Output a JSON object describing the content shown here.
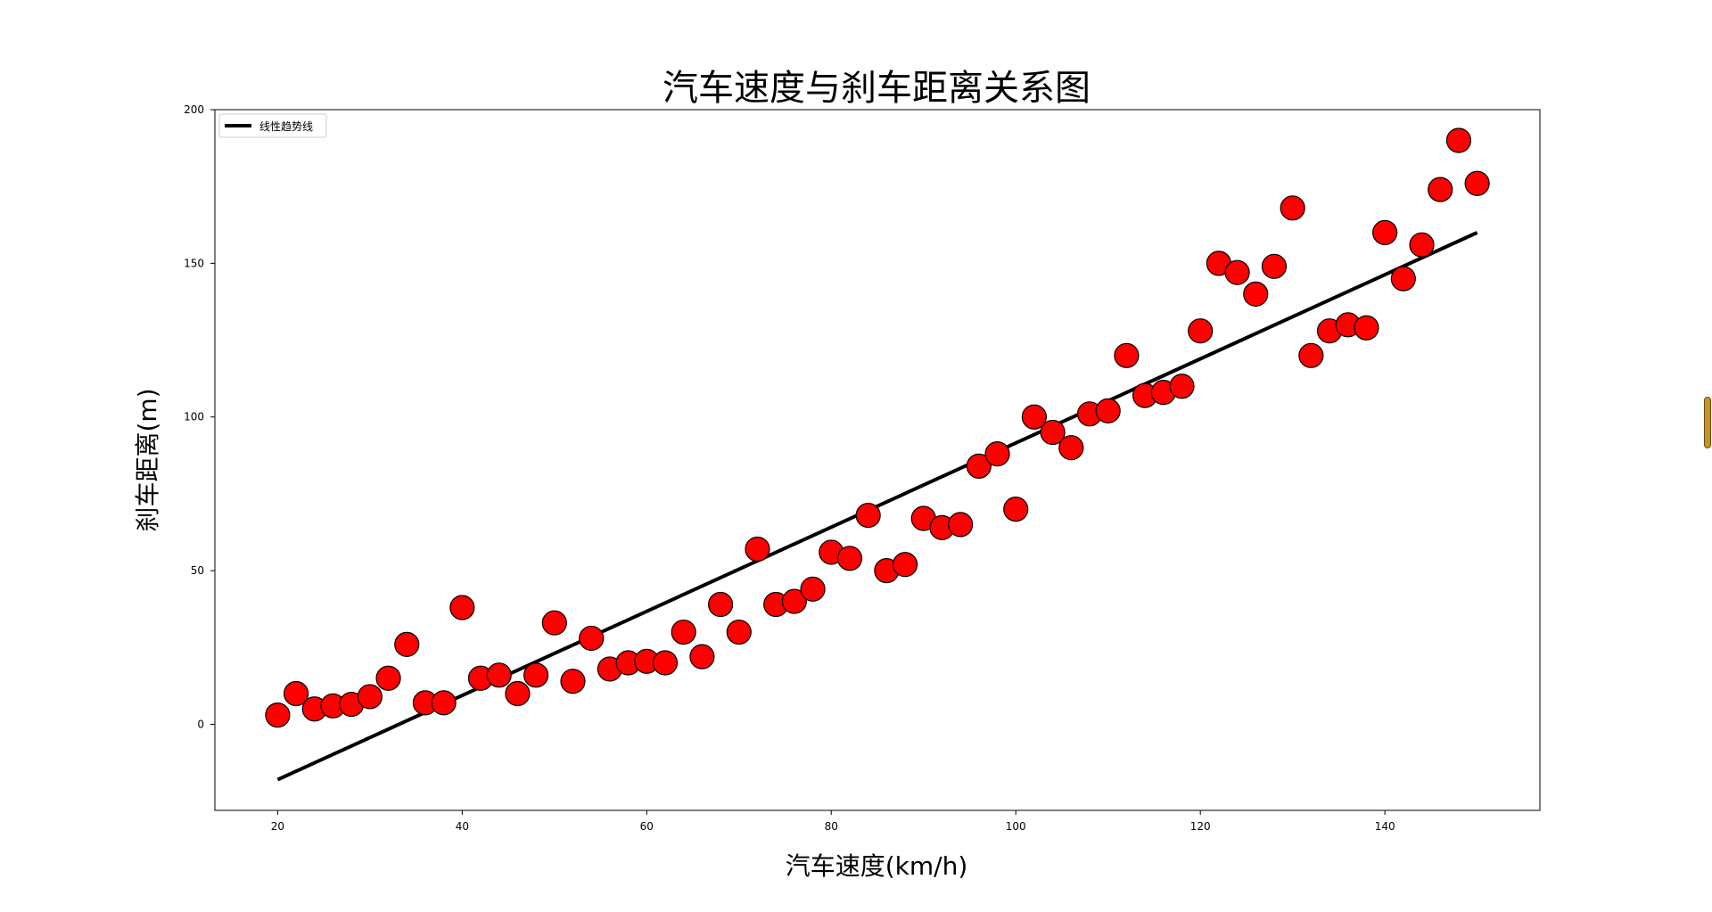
{
  "chart_data": {
    "type": "scatter",
    "title": "汽车速度与刹车距离关系图",
    "xlabel": "汽车速度(km/h)",
    "ylabel": "刹车距离(m)",
    "xlim": [
      13.2,
      156.8
    ],
    "ylim": [
      -28,
      200
    ],
    "xticks": [
      20,
      40,
      60,
      80,
      100,
      120,
      140
    ],
    "yticks": [
      0,
      50,
      100,
      150,
      200
    ],
    "grid": false,
    "legend": {
      "position": "top-left",
      "entries": [
        "线性趋势线"
      ]
    },
    "series": [
      {
        "kind": "points",
        "color": "#ff0000",
        "edgecolor": "#000000",
        "x": [
          20,
          22,
          24,
          26,
          28,
          30,
          32,
          34,
          36,
          38,
          40,
          42,
          44,
          46,
          48,
          50,
          52,
          54,
          56,
          58,
          60,
          62,
          64,
          66,
          68,
          70,
          72,
          74,
          76,
          78,
          80,
          82,
          84,
          86,
          88,
          90,
          92,
          94,
          96,
          98,
          100,
          102,
          104,
          106,
          108,
          110,
          112,
          114,
          116,
          118,
          120,
          122,
          124,
          126,
          128,
          130,
          132,
          134,
          136,
          138,
          140,
          142,
          144,
          146,
          148,
          150
        ],
        "y": [
          3,
          10,
          5,
          6,
          6.5,
          9,
          15,
          26,
          7,
          7,
          38,
          15,
          16,
          10,
          16,
          33,
          14,
          28,
          18,
          20,
          20.5,
          20,
          30,
          22,
          39,
          30,
          57,
          39,
          40,
          44,
          56,
          54,
          68,
          50,
          52,
          67,
          64,
          65,
          84,
          88,
          70,
          100,
          95,
          90,
          101,
          102,
          120,
          107,
          108,
          110,
          128,
          150,
          147,
          140,
          149,
          168,
          120,
          128,
          130,
          129,
          160,
          145,
          156,
          174,
          190,
          176
        ]
      },
      {
        "kind": "line",
        "name": "线性趋势线",
        "color": "#000000",
        "x": [
          20,
          150
        ],
        "y": [
          -18,
          160
        ]
      }
    ]
  }
}
